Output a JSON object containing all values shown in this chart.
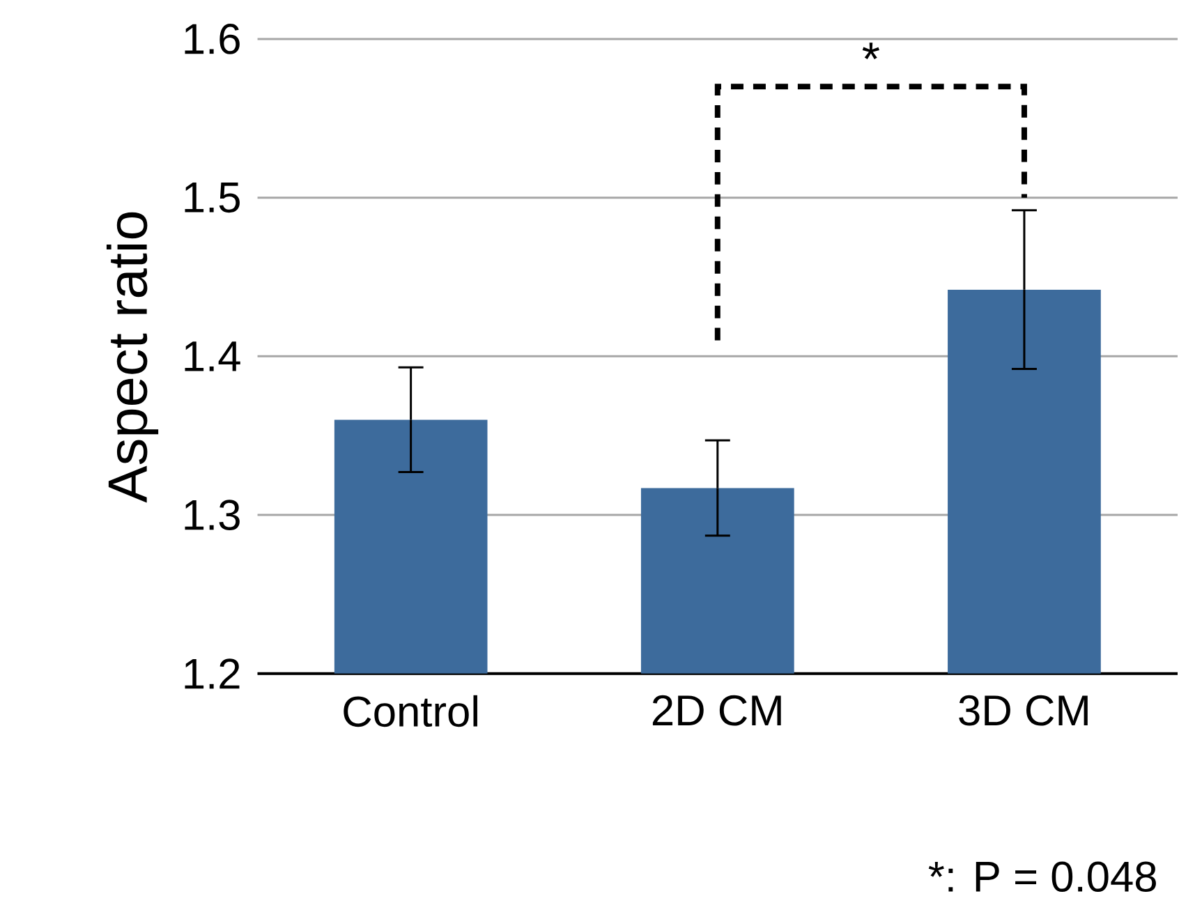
{
  "chart_data": {
    "type": "bar",
    "ylabel": "Aspect ratio",
    "categories": [
      "Control",
      "2D CM",
      "3D CM"
    ],
    "values": [
      1.36,
      1.317,
      1.442
    ],
    "errors": [
      0.033,
      0.03,
      0.05
    ],
    "color": "#3d6b9c",
    "ylim": [
      1.2,
      1.6
    ],
    "yticks": [
      1.2,
      1.3,
      1.4,
      1.5,
      1.6
    ],
    "grid": "y",
    "annotations": [
      "*",
      "*: P = 0.048"
    ]
  }
}
